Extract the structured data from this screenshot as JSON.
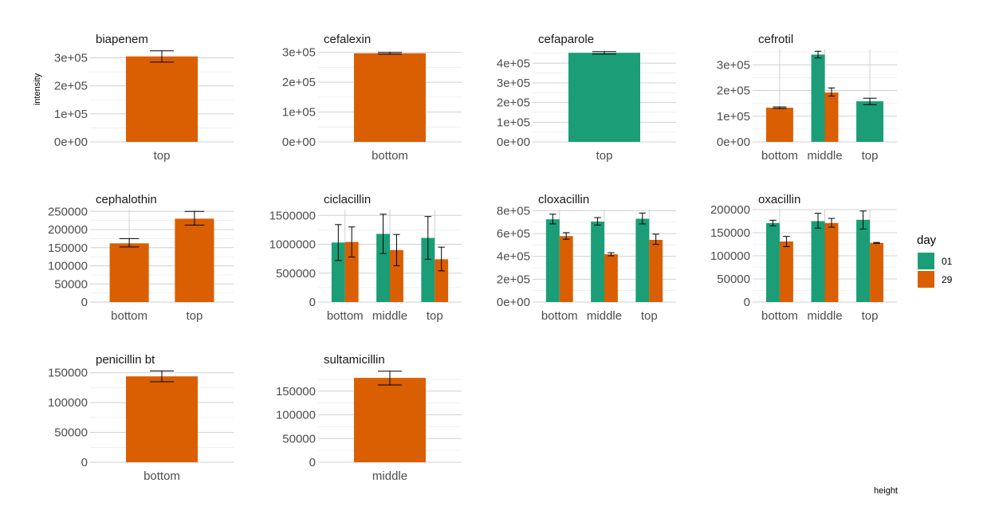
{
  "chart_data": {
    "type": "bar",
    "ylabel": "intensity",
    "xlabel": "height",
    "legend": {
      "title": "day",
      "position": "right",
      "entries": [
        {
          "name": "01",
          "color": "#1B9E77"
        },
        {
          "name": "29",
          "color": "#D95F02"
        }
      ]
    },
    "grid": true,
    "facets": [
      {
        "title": "biapenem",
        "ylim": [
          0,
          330000
        ],
        "yticks": [
          0,
          100000,
          200000,
          300000
        ],
        "ytick_labels": [
          "0e+00",
          "1e+05",
          "2e+05",
          "3e+05"
        ],
        "categories": [
          "top"
        ],
        "series": [
          {
            "name": "29",
            "values": [
              305000
            ],
            "err_low": [
              285000
            ],
            "err_high": [
              325000
            ]
          }
        ]
      },
      {
        "title": "cefalexin",
        "ylim": [
          0,
          310000
        ],
        "yticks": [
          0,
          100000,
          200000,
          300000
        ],
        "ytick_labels": [
          "0e+00",
          "1e+05",
          "2e+05",
          "3e+05"
        ],
        "categories": [
          "bottom"
        ],
        "series": [
          {
            "name": "29",
            "values": [
              297000
            ],
            "err_low": [
              294000
            ],
            "err_high": [
              300000
            ]
          }
        ]
      },
      {
        "title": "cefaparole",
        "ylim": [
          0,
          470000
        ],
        "yticks": [
          0,
          100000,
          200000,
          300000,
          400000
        ],
        "ytick_labels": [
          "0e+00",
          "1e+05",
          "2e+05",
          "3e+05",
          "4e+05"
        ],
        "categories": [
          "top"
        ],
        "series": [
          {
            "name": "01",
            "values": [
              453000
            ],
            "err_low": [
              446000
            ],
            "err_high": [
              459000
            ]
          }
        ]
      },
      {
        "title": "cefrotil",
        "ylim": [
          0,
          360000
        ],
        "yticks": [
          0,
          100000,
          200000,
          300000
        ],
        "ytick_labels": [
          "0e+00",
          "1e+05",
          "2e+05",
          "3e+05"
        ],
        "categories": [
          "bottom",
          "middle",
          "top"
        ],
        "series": [
          {
            "name": "01",
            "values": [
              null,
              340000,
              158000
            ],
            "err_low": [
              null,
              327000,
              145000
            ],
            "err_high": [
              null,
              353000,
              170000
            ]
          },
          {
            "name": "29",
            "values": [
              133000,
              192000,
              null
            ],
            "err_low": [
              130000,
              178000,
              null
            ],
            "err_high": [
              136000,
              210000,
              null
            ]
          }
        ]
      },
      {
        "title": "cephalothin",
        "ylim": [
          0,
          255000
        ],
        "yticks": [
          0,
          50000,
          100000,
          150000,
          200000,
          250000
        ],
        "ytick_labels": [
          "0",
          "50000",
          "100000",
          "150000",
          "200000",
          "250000"
        ],
        "categories": [
          "bottom",
          "top"
        ],
        "series": [
          {
            "name": "29",
            "values": [
              162000,
              230000
            ],
            "err_low": [
              152000,
              212000
            ],
            "err_high": [
              175000,
              250000
            ]
          }
        ]
      },
      {
        "title": "ciclacillin",
        "ylim": [
          0,
          1600000
        ],
        "yticks": [
          0,
          500000,
          1000000,
          1500000
        ],
        "ytick_labels": [
          "0",
          "500000",
          "1000000",
          "1500000"
        ],
        "categories": [
          "bottom",
          "middle",
          "top"
        ],
        "series": [
          {
            "name": "01",
            "values": [
              1030000,
              1180000,
              1110000
            ],
            "err_low": [
              720000,
              840000,
              740000
            ],
            "err_high": [
              1340000,
              1520000,
              1480000
            ]
          },
          {
            "name": "29",
            "values": [
              1040000,
              900000,
              740000
            ],
            "err_low": [
              780000,
              630000,
              540000
            ],
            "err_high": [
              1300000,
              1170000,
              950000
            ]
          }
        ]
      },
      {
        "title": "cloxacillin",
        "ylim": [
          0,
          810000
        ],
        "yticks": [
          0,
          200000,
          400000,
          600000,
          800000
        ],
        "ytick_labels": [
          "0e+00",
          "2e+05",
          "4e+05",
          "6e+05",
          "8e+05"
        ],
        "categories": [
          "bottom",
          "middle",
          "top"
        ],
        "series": [
          {
            "name": "01",
            "values": [
              725000,
              705000,
              730000
            ],
            "err_low": [
              685000,
              675000,
              685000
            ],
            "err_high": [
              770000,
              740000,
              780000
            ]
          },
          {
            "name": "29",
            "values": [
              578000,
              418000,
              545000
            ],
            "err_low": [
              550000,
              405000,
              505000
            ],
            "err_high": [
              608000,
              432000,
              595000
            ]
          }
        ]
      },
      {
        "title": "oxacillin",
        "ylim": [
          0,
          200000
        ],
        "yticks": [
          0,
          50000,
          100000,
          150000,
          200000
        ],
        "ytick_labels": [
          "0",
          "50000",
          "100000",
          "150000",
          "200000"
        ],
        "categories": [
          "bottom",
          "middle",
          "top"
        ],
        "series": [
          {
            "name": "01",
            "values": [
              171000,
              175000,
              178000
            ],
            "err_low": [
              165000,
              160000,
              158000
            ],
            "err_high": [
              177000,
              192000,
              197000
            ]
          },
          {
            "name": "29",
            "values": [
              131000,
              171000,
              128000
            ],
            "err_low": [
              120000,
              162000,
              127000
            ],
            "err_high": [
              142000,
              181000,
              129000
            ]
          }
        ]
      },
      {
        "title": "penicillin bt",
        "ylim": [
          0,
          155000
        ],
        "yticks": [
          0,
          50000,
          100000,
          150000
        ],
        "ytick_labels": [
          "0",
          "50000",
          "100000",
          "150000"
        ],
        "categories": [
          "bottom"
        ],
        "series": [
          {
            "name": "29",
            "values": [
              144000
            ],
            "err_low": [
              135000
            ],
            "err_high": [
              153000
            ]
          }
        ]
      },
      {
        "title": "sultamicillin",
        "ylim": [
          0,
          195000
        ],
        "yticks": [
          0,
          50000,
          100000,
          150000
        ],
        "ytick_labels": [
          "0",
          "50000",
          "100000",
          "150000"
        ],
        "categories": [
          "middle"
        ],
        "series": [
          {
            "name": "29",
            "values": [
              178000
            ],
            "err_low": [
              163000
            ],
            "err_high": [
              192000
            ]
          }
        ]
      }
    ]
  }
}
